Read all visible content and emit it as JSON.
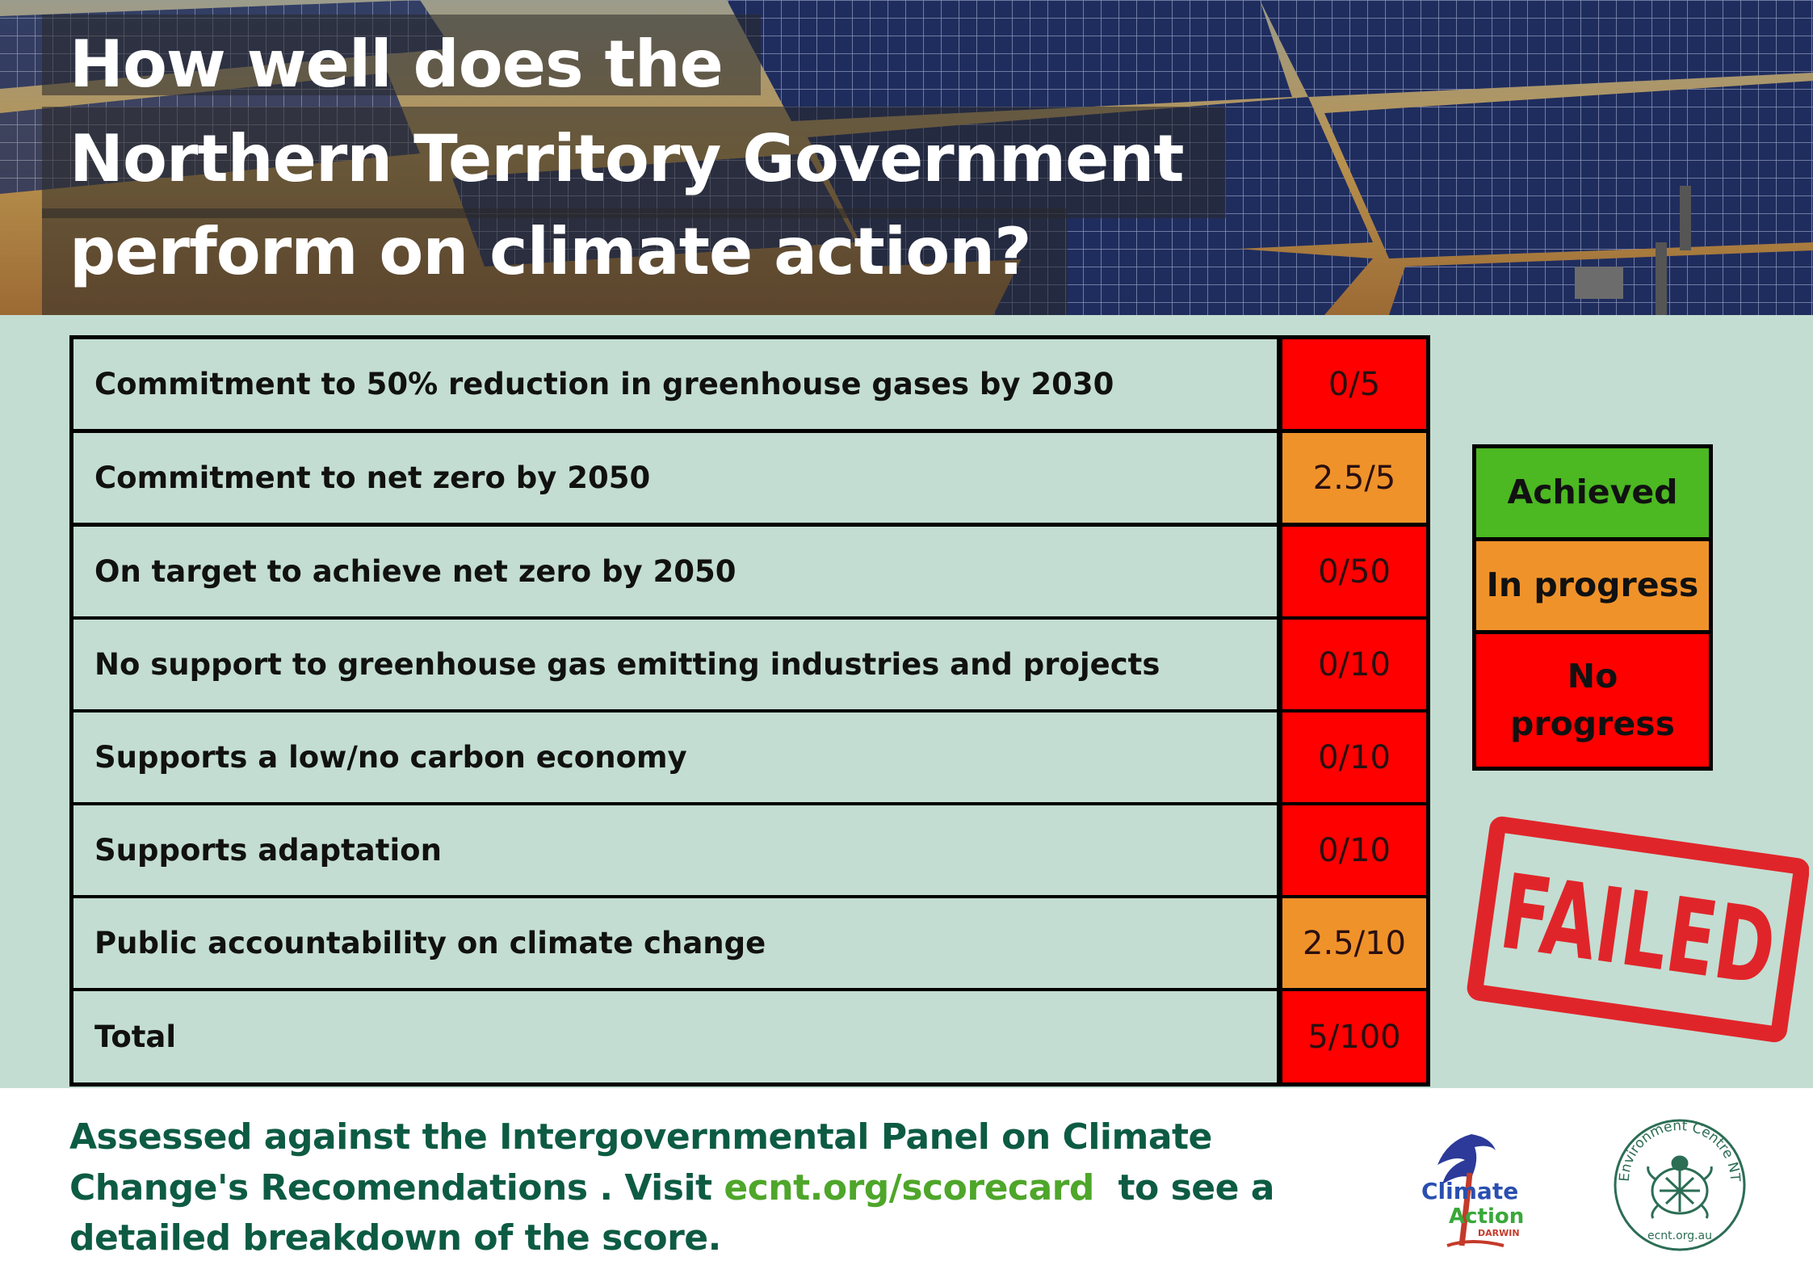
{
  "title": {
    "line1": "How well does the",
    "line2": "Northern Territory Government",
    "line3": "perform on climate action?"
  },
  "criteria": [
    {
      "label": "Commitment to 50% reduction in greenhouse gases by 2030",
      "score": "0/5",
      "status": "no-progress"
    },
    {
      "label": "Commitment to net zero by 2050",
      "score": "2.5/5",
      "status": "in-progress"
    },
    {
      "label": "On target to achieve net zero by 2050",
      "score": "0/50",
      "status": "no-progress"
    },
    {
      "label": "No support to greenhouse gas emitting industries and projects",
      "score": "0/10",
      "status": "no-progress"
    },
    {
      "label": "Supports a low/no carbon economy",
      "score": "0/10",
      "status": "no-progress"
    },
    {
      "label": "Supports adaptation",
      "score": "0/10",
      "status": "no-progress"
    },
    {
      "label": "Public accountability on climate change",
      "score": "2.5/10",
      "status": "in-progress"
    },
    {
      "label": "Total",
      "score": "5/100",
      "status": "no-progress"
    }
  ],
  "legend": {
    "achieved": "Achieved",
    "in_progress": "In progress",
    "no_progress_1": "No",
    "no_progress_2": "progress"
  },
  "stamp_text": "FAILED",
  "footer": {
    "line1": "Assessed against the Intergovernmental Panel on Climate",
    "line2_a": "Change's Recomendations . Visit ",
    "line2_link": "ecnt.org/scorecard",
    "line2_b": "  to see a",
    "line3": "detailed breakdown of the score."
  },
  "logos": {
    "climate_action_1": "Climate",
    "climate_action_2": "Action",
    "climate_action_3": "DARWIN",
    "ecnt_ring": "Environment Centre NT",
    "ecnt_url": "ecnt.org.au"
  },
  "colors": {
    "background": "#c3ddd2",
    "achieved": "#4cb822",
    "in_progress": "#f0922a",
    "no_progress": "#ff0000",
    "footer_text": "#0d5b43",
    "footer_link": "#4ea62a",
    "stamp": "#e0252a"
  }
}
